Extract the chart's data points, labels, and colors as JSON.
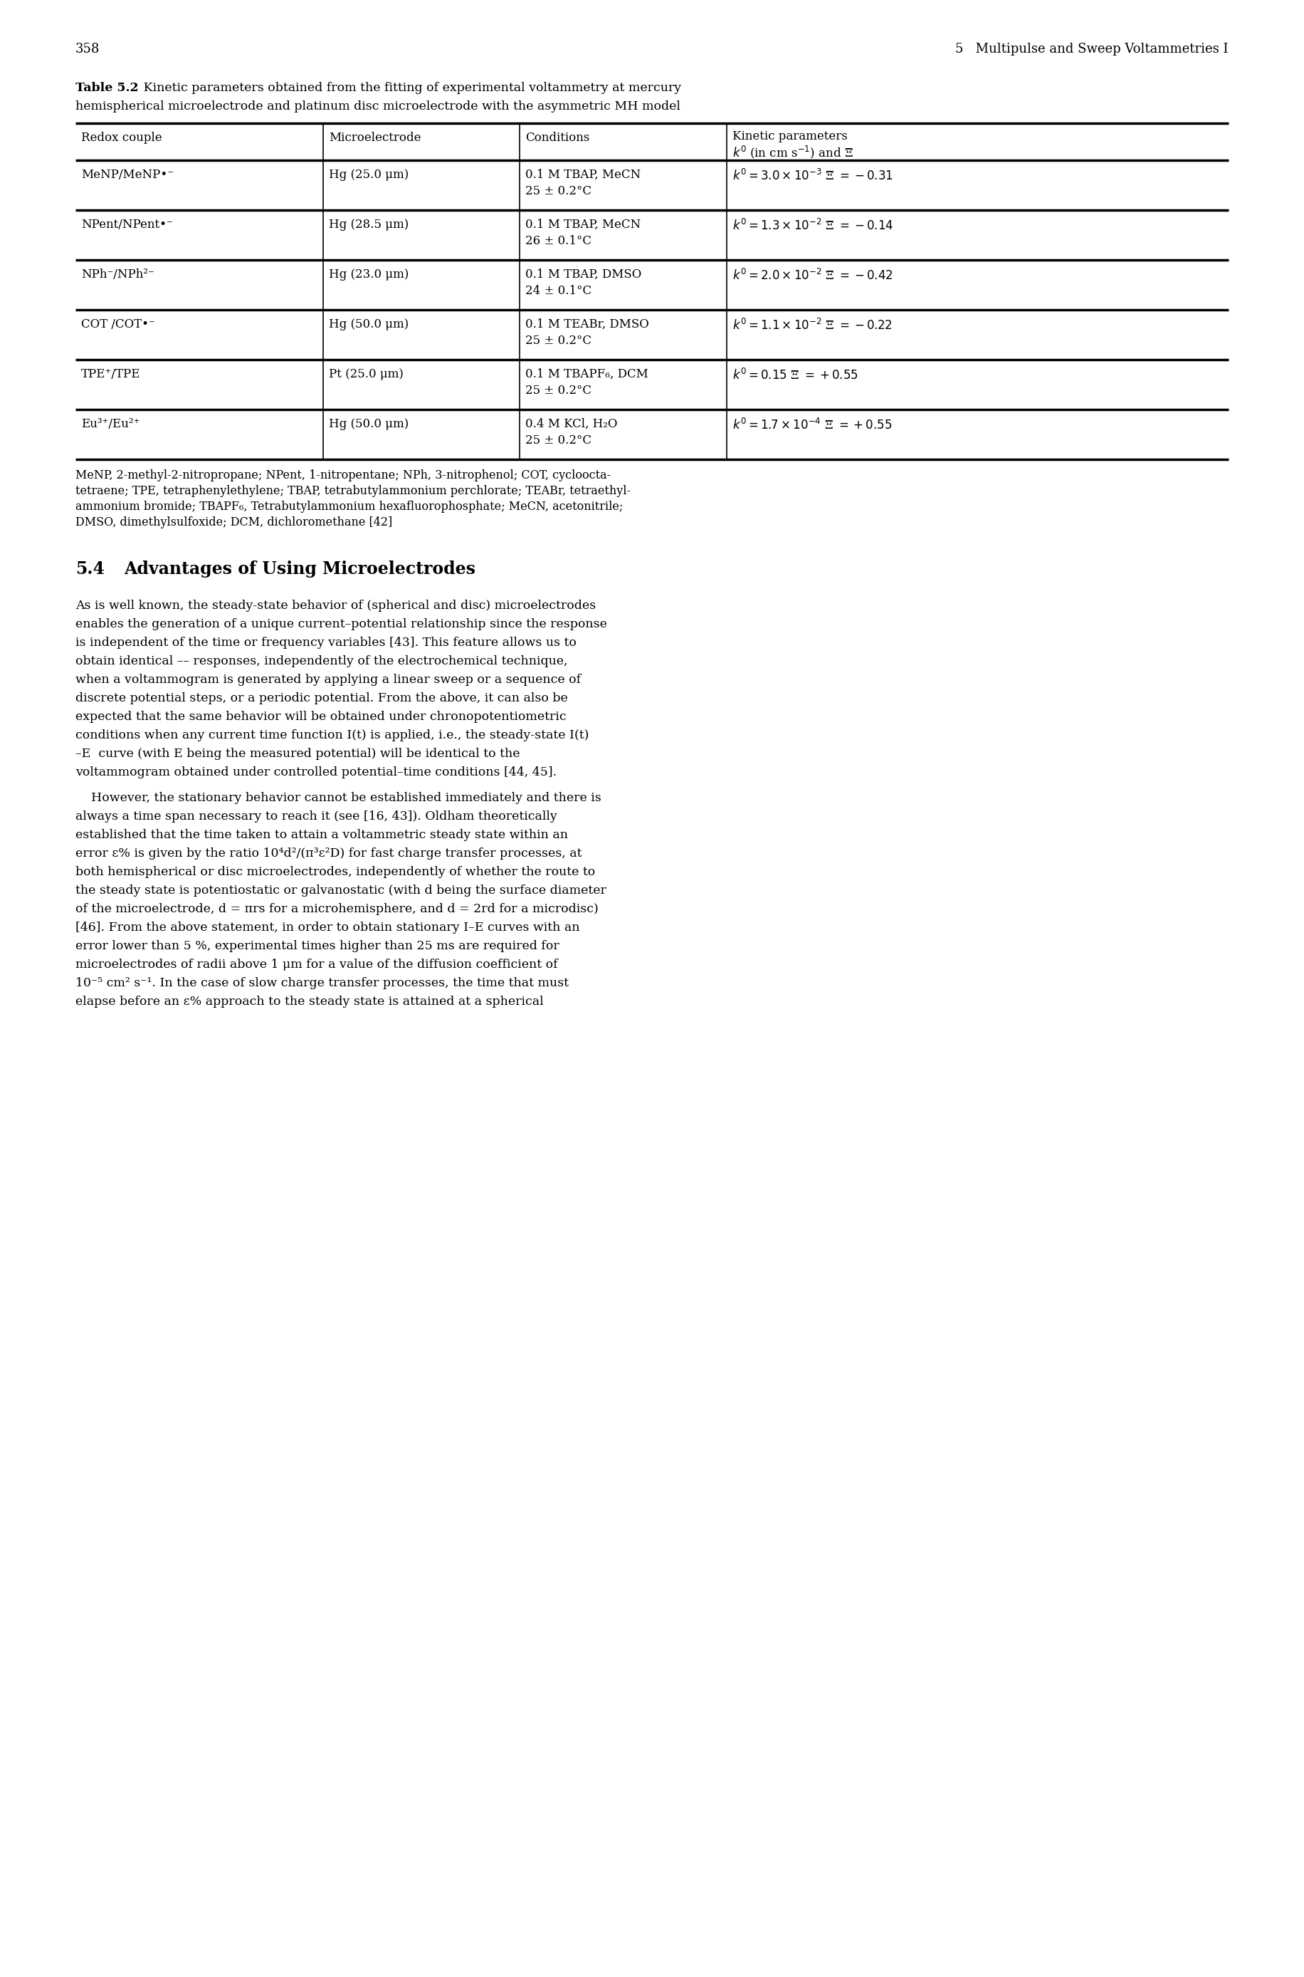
{
  "page_number": "358",
  "header_right": "5   Multipulse and Sweep Voltammetries I",
  "table_caption_bold": "Table 5.2",
  "table_caption_line1": " Kinetic parameters obtained from the fitting of experimental voltammetry at mercury",
  "table_caption_line2": "hemispherical microelectrode and platinum disc microelectrode with the asymmetric MH model",
  "col_headers": [
    "Redox couple",
    "Microelectrode",
    "Conditions",
    "Kinetic parameters",
    "$k^0$ (in cm s$^{-1}$) and Ξ"
  ],
  "row_data": [
    {
      "col0": "MeNP/MeNP•⁻",
      "col1": "Hg (25.0 μm)",
      "col2a": "0.1 M TBAP, MeCN",
      "col2b": "25 ± 0.2°C",
      "col3": "$k^0 = 3.0 \\times 10^{-3}$ Ξ $= -0.31$"
    },
    {
      "col0": "NPent/NPent•⁻",
      "col1": "Hg (28.5 μm)",
      "col2a": "0.1 M TBAP, MeCN",
      "col2b": "26 ± 0.1°C",
      "col3": "$k^0 = 1.3 \\times 10^{-2}$ Ξ $= -0.14$"
    },
    {
      "col0": "NPh⁻/NPh²⁻",
      "col1": "Hg (23.0 μm)",
      "col2a": "0.1 M TBAP, DMSO",
      "col2b": "24 ± 0.1°C",
      "col3": "$k^0 = 2.0 \\times 10^{-2}$ Ξ $= -0.42$"
    },
    {
      "col0": "COT/COT•⁻",
      "col1": "Hg (50.0 μm)",
      "col2a": "0.1 M TEABr, DMSO",
      "col2b": "25 ± 0.2°C",
      "col3": "$k^0 = 1.1 \\times 10^{-2}$ Ξ $= -0.22$"
    },
    {
      "col0": "TPE⁺/TPE",
      "col1": "Pt (25.0 μm)",
      "col2a": "0.1 M TBAPF₆, DCM",
      "col2b": "25 ± 0.2°C",
      "col3": "$k^0 = 0.15$ Ξ $= +0.55$"
    },
    {
      "col0": "Eu³⁺/Eu²⁺",
      "col1": "Hg (50.0 μm)",
      "col2a": "0.4 M KCl, H₂O",
      "col2b": "25 ± 0.2°C",
      "col3": "$k^0 = 1.7 \\times 10^{-4}$ Ξ $= +0.55$"
    }
  ],
  "footnote_lines": [
    "MeNP, 2-methyl-2-nitropropane; NPent, 1-nitropentane; NPh, 3-nitrophenol; COT, cycloocta-",
    "tetraene; TPE, tetraphenylethylene; TBAP, tetrabutylammonium perchlorate; TEABr, tetraethyl-",
    "ammonium bromide; TBAPF₆, Tetrabutylammonium hexafluorophosphate; MeCN, acetonitrile;",
    "DMSO, dimethylsulfoxide; DCM, dichloromethane [42]"
  ],
  "section_num": "5.4",
  "section_title": "Advantages of Using Microelectrodes",
  "para1_lines": [
    "As is well known, the steady-state behavior of (spherical and disc) microelectrodes",
    "enables the generation of a unique current–potential relationship since the response",
    "is independent of the time or frequency variables [43]. This feature allows us to",
    "obtain identical –– responses, independently of the electrochemical technique,",
    "when a voltammogram is generated by applying a linear sweep or a sequence of",
    "discrete potential steps, or a periodic potential. From the above, it can also be",
    "expected that the same behavior will be obtained under chronopotentiometric",
    "conditions when any current time function I(t) is applied, i.e., the steady-state I(t)",
    "–E  curve (with E being the measured potential) will be identical to the",
    "voltammogram obtained under controlled potential–time conditions [44, 45]."
  ],
  "para2_lines": [
    "    However, the stationary behavior cannot be established immediately and there is",
    "always a time span necessary to reach it (see [16, 43]). Oldham theoretically",
    "established that the time taken to attain a voltammetric steady state within an",
    "error ε% is given by the ratio 10⁴d²/(π³ε²D) for fast charge transfer processes, at",
    "both hemispherical or disc microelectrodes, independently of whether the route to",
    "the steady state is potentiostatic or galvanostatic (with d being the surface diameter",
    "of the microelectrode, d = πrs for a microhemisphere, and d = 2rd for a microdisc)",
    "[46]. From the above statement, in order to obtain stationary I–E curves with an",
    "error lower than 5 %, experimental times higher than 25 ms are required for",
    "microelectrodes of radii above 1 μm for a value of the diffusion coefficient of",
    "10⁻⁵ cm² s⁻¹. In the case of slow charge transfer processes, the time that must",
    "elapse before an ε% approach to the steady state is attained at a spherical"
  ],
  "bg_color": "#ffffff",
  "text_color": "#000000"
}
